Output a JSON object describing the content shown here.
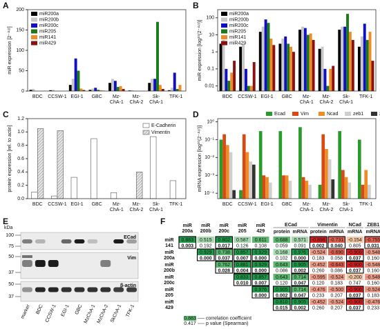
{
  "chart_data": [
    {
      "label": "A",
      "type": "bar",
      "ylabel": "miR expression [2⁻ᐞᶜᵗ]",
      "categories": [
        "BDC",
        "CCSW-1",
        "EGI-1",
        "GBC",
        "Mz-ChA-1",
        "Mz-ChA-2",
        "Sk-ChA-1",
        "TFK-1"
      ],
      "series": [
        {
          "name": "miR200a",
          "color": "#000000",
          "values": [
            3,
            2,
            15,
            3,
            20,
            1.5,
            20,
            2
          ]
        },
        {
          "name": "miR200b",
          "color": "#c8c8c8",
          "values": [
            5,
            3,
            30,
            6,
            30,
            2,
            30,
            8
          ]
        },
        {
          "name": "miR200c",
          "color": "#1010c0",
          "values": [
            0.1,
            0.1,
            80,
            8,
            25,
            0.1,
            30,
            45
          ]
        },
        {
          "name": "miR205",
          "color": "#1a7a1a",
          "values": [
            0.02,
            0.01,
            50,
            3,
            10,
            0.01,
            170,
            5
          ]
        },
        {
          "name": "miR141",
          "color": "#f08c28",
          "values": [
            0.06,
            0.01,
            6,
            2,
            12,
            0.1,
            15,
            15
          ]
        },
        {
          "name": "miR429",
          "color": "#8b1010",
          "values": [
            0.3,
            0.25,
            2.5,
            1,
            5,
            0.15,
            5,
            0.3
          ]
        }
      ],
      "ylim": [
        0,
        200
      ],
      "yticks": [
        0,
        50,
        100,
        150,
        200
      ],
      "legend": "upper left"
    },
    {
      "label": "B",
      "type": "bar",
      "ylabel": "miR expression [log¹⁰(2⁻ᐞᶜᵗ)]",
      "log_scale": true,
      "categories": [
        "BDC",
        "CCSW-1",
        "EGI-1",
        "GBC",
        "Mz-ChA-1",
        "Mz-ChA-2",
        "Sk-ChA-1",
        "TFK-1"
      ],
      "series": [
        {
          "name": "miR200a",
          "color": "#000000",
          "values": [
            3,
            2,
            15,
            3,
            20,
            1.5,
            20,
            2
          ]
        },
        {
          "name": "miR200b",
          "color": "#c8c8c8",
          "values": [
            5,
            3,
            30,
            6,
            30,
            2,
            30,
            8
          ]
        },
        {
          "name": "miR200c",
          "color": "#1010c0",
          "values": [
            0.1,
            0.1,
            80,
            8,
            25,
            0.1,
            30,
            45
          ]
        },
        {
          "name": "miR205",
          "color": "#1a7a1a",
          "values": [
            0.02,
            0.01,
            50,
            3,
            10,
            0.01,
            170,
            5
          ]
        },
        {
          "name": "miR141",
          "color": "#f08c28",
          "values": [
            0.06,
            0.01,
            6,
            2,
            12,
            0.1,
            15,
            15
          ]
        },
        {
          "name": "miR429",
          "color": "#8b1010",
          "values": [
            0.3,
            0.25,
            2.5,
            1,
            5,
            0.15,
            5,
            0.3
          ]
        }
      ],
      "ylim": [
        0.005,
        300
      ],
      "yticks": [
        0.01,
        0.1,
        1,
        10,
        100
      ],
      "legend": "upper left"
    },
    {
      "label": "C",
      "type": "bar",
      "ylabel": "protein expression [rel. to actin]",
      "categories": [
        "BDC",
        "CCSW-1",
        "EGI-1",
        "GBC",
        "Mz-ChA-1",
        "Mz-ChA-2",
        "Sk-ChA-1",
        "TFK-1"
      ],
      "series": [
        {
          "name": "E-Cadherin",
          "color": "#ffffff",
          "values": [
            0.1,
            0.04,
            0.32,
            0.9,
            0.09,
            null,
            0.93,
            0.27
          ]
        },
        {
          "name": "Vimentin",
          "color": "#d0d0d0",
          "hatch": true,
          "values": [
            1.05,
            1.02,
            null,
            null,
            null,
            0.4,
            null,
            null
          ]
        }
      ],
      "ylim": [
        0,
        1.2
      ],
      "yticks": [
        {
          "value": 0,
          "label": "0.0"
        },
        0.2,
        0.4,
        0.6,
        0.8,
        {
          "value": 1,
          "label": "1.0"
        },
        1.2
      ],
      "legend": "upper right"
    },
    {
      "label": "D",
      "type": "bar",
      "ylabel": "mRNA expression [log¹⁰(2⁻ᐞᶜᵗ)]",
      "log_scale": true,
      "categories": [
        "BDC",
        "CCSW-1",
        "EGI-1",
        "GBC",
        "Mz-ChA-1",
        "Mz-ChA-2",
        "Sk-ChA-1",
        "TFK-1"
      ],
      "series": [
        {
          "name": "Ecad",
          "color": "#2a9a2a",
          "values": [
            0.1,
            0.00015,
            0.3,
            0.3,
            0.5,
            0.0003,
            0.3,
            0.1
          ]
        },
        {
          "name": "Vim",
          "color": "#d84a14",
          "values": [
            0.2,
            0.2,
            0.001,
            0.001,
            0.0008,
            0.2,
            0.002,
            0.0003
          ]
        },
        {
          "name": "Ncad",
          "color": "#f08c28",
          "values": [
            0.05,
            0.02,
            0.0008,
            0.001,
            0.0005,
            0.03,
            0.0008,
            0.002
          ]
        },
        {
          "name": "zeb1",
          "color": "#cfcfcf",
          "values": [
            0.02,
            0.006,
            0.0004,
            0.0005,
            0.0003,
            0.008,
            0.0004,
            0.0003
          ]
        },
        {
          "name": "zeb2",
          "color": "#333333",
          "values": [
            0.00015,
            0.004,
            null,
            null,
            null,
            0.0006,
            null,
            null
          ]
        }
      ],
      "ylim": [
        5e-05,
        1.5
      ],
      "yticks": [
        {
          "value": 0.0001,
          "label": "10⁻⁴"
        },
        {
          "value": 0.001,
          "label": "10⁻³"
        },
        {
          "value": 0.01,
          "label": "10⁻²"
        },
        {
          "value": 0.1,
          "label": "10⁻¹"
        },
        {
          "value": 1,
          "label": "10⁰"
        }
      ],
      "legend": "top"
    }
  ],
  "blot": {
    "label": "E",
    "unit": "kDa",
    "markers": [
      "100",
      "75",
      "50",
      "37",
      "50",
      "37"
    ],
    "proteins": [
      "ECad",
      "Vim",
      "β-actin"
    ],
    "lanes": [
      "marker",
      "BDC",
      "CCSW-1",
      "EGI-1",
      "GBC",
      "MzChA-1",
      "MzChA-2",
      "SkChA-1",
      "TFK-1"
    ]
  },
  "table": {
    "label": "F",
    "groups": [
      "ECad",
      "Vimentin",
      "NCad",
      "ZEB1"
    ],
    "columns": [
      "miR 200a",
      "miR 200b",
      "miR 200c",
      "miR 205",
      "miR 429",
      "protein",
      "mRNA",
      "protein",
      "mRNA",
      "mRNA",
      "mRNA"
    ],
    "rows": [
      {
        "name": "miR 141",
        "cells": [
          [
            "0.883",
            "0.003"
          ],
          [
            "0.515",
            "0.192"
          ],
          [
            "0.802",
            "0.017"
          ],
          [
            "0.587",
            "0.126"
          ],
          [
            "0.611",
            "0.108"
          ],
          [
            "0.688",
            "0.059"
          ],
          [
            "0.571",
            "0.091"
          ],
          [
            "-0.898",
            "0.002"
          ],
          [
            "-0.731",
            "0.040"
          ],
          [
            "-0.154",
            "0.805"
          ],
          [
            "-0.755",
            "0.031"
          ]
        ]
      },
      {
        "name": "miR 200a",
        "cells": [
          null,
          [
            "0.929",
            "0.000"
          ],
          [
            "0.738",
            "0.037"
          ],
          [
            "0.857",
            "0.007"
          ],
          [
            "0.929",
            "0.000"
          ],
          [
            "0.168",
            "0.102"
          ],
          [
            "0.976",
            "0.000"
          ],
          [
            "-0.524",
            "0.183"
          ],
          [
            "-0.690",
            "0.058"
          ],
          [
            "-0.900",
            "0.037"
          ],
          [
            "-0.548",
            "0.160"
          ]
        ]
      },
      {
        "name": "miR 200b",
        "cells": [
          null,
          null,
          [
            "0.762",
            "0.028"
          ],
          [
            "0.881",
            "0.004"
          ],
          [
            "0.929",
            "0.000"
          ],
          [
            "0.643",
            "0.086"
          ],
          [
            "0.905",
            "0.002"
          ],
          [
            "-0.452",
            "0.260"
          ],
          [
            "-0.643",
            "0.086"
          ],
          [
            "-0.900",
            "0.037"
          ],
          [
            "-0.548",
            "0.160"
          ]
        ]
      },
      {
        "name": "miR 200c",
        "cells": [
          null,
          null,
          null,
          [
            "0.833",
            "0.010"
          ],
          [
            "0.857",
            "0.007"
          ],
          [
            "0.643",
            "0.120"
          ],
          [
            "0.714",
            "0.047"
          ],
          [
            "-0.595",
            "0.120"
          ],
          [
            "-0.524",
            "0.183"
          ],
          [
            "-0.200",
            "0.747"
          ],
          [
            "-0.548",
            "0.160"
          ]
        ]
      },
      {
        "name": "miR 205",
        "cells": [
          null,
          null,
          null,
          null,
          [
            "0.976",
            "0.000"
          ],
          [
            "0.905",
            "0.002"
          ],
          [
            "0.714",
            "0.047"
          ],
          [
            "-0.476",
            "0.233"
          ],
          [
            "-0.500",
            "0.207"
          ],
          [
            "-0.900",
            "0.037"
          ],
          [
            "-0.524",
            "0.183"
          ]
        ]
      },
      {
        "name": "miR 429",
        "cells": [
          null,
          null,
          null,
          null,
          null,
          [
            "0.810",
            "0.015"
          ],
          [
            "0.905",
            "0.002"
          ],
          [
            "-0.452",
            "0.260"
          ],
          [
            "-0.524",
            "0.207"
          ],
          [
            "-0.900",
            "0.037"
          ],
          [
            "-0.476",
            "0.233"
          ]
        ]
      }
    ],
    "legend": {
      "sample": [
        "0.883",
        "0.417"
      ],
      "texts": [
        "correlation coefficient",
        "p value (Spearman)"
      ]
    }
  }
}
